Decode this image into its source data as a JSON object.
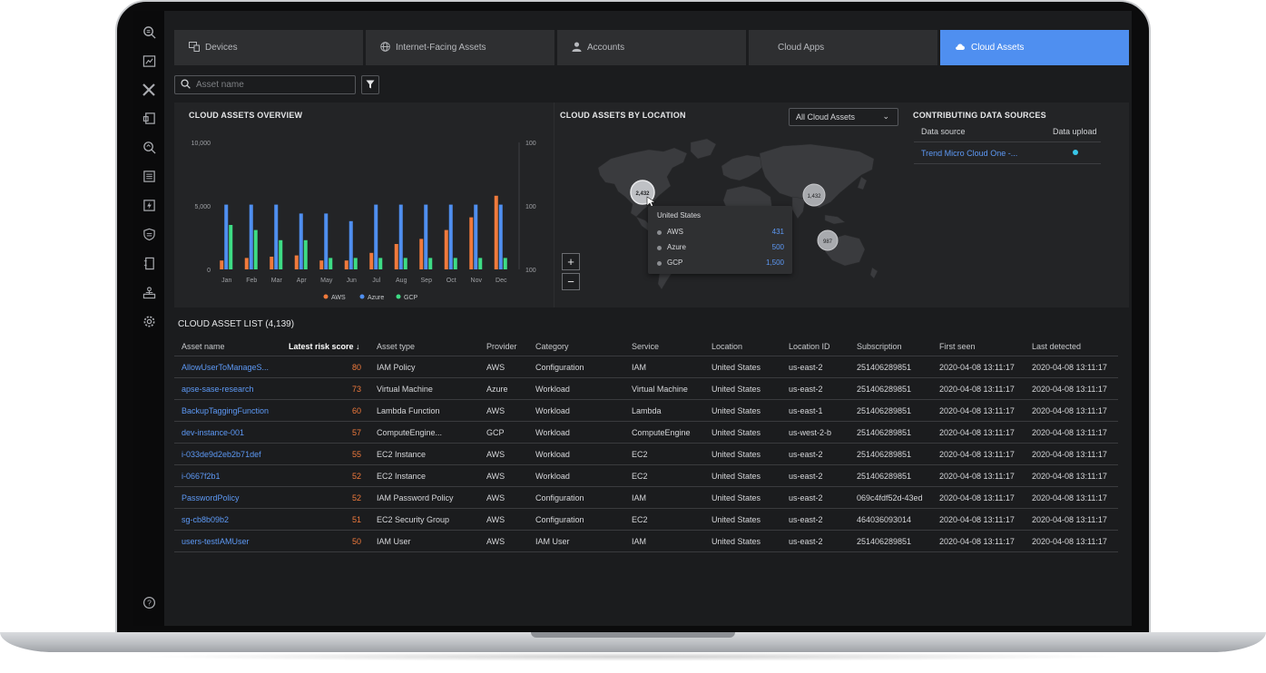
{
  "tabs": [
    {
      "label": "Devices",
      "icon": "devices-icon"
    },
    {
      "label": "Internet-Facing Assets",
      "icon": "globe-icon"
    },
    {
      "label": "Accounts",
      "icon": "user-icon"
    },
    {
      "label": "Cloud Apps",
      "icon": ""
    },
    {
      "label": "Cloud Assets",
      "icon": "cloud-icon",
      "active": true
    }
  ],
  "search": {
    "placeholder": "Asset name"
  },
  "overview": {
    "title": "CLOUD ASSETS OVERVIEW"
  },
  "chart_data": {
    "type": "bar",
    "categories": [
      "Jan",
      "Feb",
      "Mar",
      "Apr",
      "May",
      "Jun",
      "Jul",
      "Aug",
      "Sep",
      "Oct",
      "Nov",
      "Dec"
    ],
    "series": [
      {
        "name": "AWS",
        "color": "#f07a3c",
        "values": [
          700,
          900,
          1000,
          1100,
          700,
          700,
          1300,
          2000,
          2400,
          3100,
          4100,
          5800
        ]
      },
      {
        "name": "Azure",
        "color": "#4f8ff0",
        "values": [
          5100,
          5100,
          5100,
          4400,
          4400,
          3800,
          5100,
          5100,
          5100,
          5100,
          5100,
          5100
        ]
      },
      {
        "name": "GCP",
        "color": "#3ddc84",
        "values": [
          3500,
          3100,
          2300,
          2300,
          900,
          900,
          900,
          900,
          900,
          900,
          900,
          900
        ]
      }
    ],
    "left_ticks": [
      "10,000",
      "5,000",
      "0"
    ],
    "right_ticks": [
      "100",
      "100",
      "100"
    ],
    "ylim": [
      0,
      10000
    ],
    "legend": "bottom"
  },
  "location": {
    "title": "CLOUD ASSETS BY LOCATION",
    "select_value": "All Cloud Assets",
    "clusters": [
      "2,432",
      "1,432",
      "987"
    ],
    "tooltip": {
      "title": "United States",
      "rows": [
        {
          "name": "AWS",
          "value": "431"
        },
        {
          "name": "Azure",
          "value": "500"
        },
        {
          "name": "GCP",
          "value": "1,500"
        }
      ]
    },
    "zoom_in": "+",
    "zoom_out": "−"
  },
  "sources": {
    "title": "CONTRIBUTING DATA SOURCES",
    "col_source": "Data source",
    "col_upload": "Data upload",
    "row_source": "Trend Micro Cloud One -...",
    "status_color": "#38c6e8"
  },
  "list": {
    "title": "CLOUD ASSET LIST (4,139)",
    "columns": [
      "Asset name",
      "Latest risk score ↓",
      "Asset type",
      "Provider",
      "Category",
      "Service",
      "Location",
      "Location ID",
      "Subscription",
      "First seen",
      "Last detected"
    ],
    "rows": [
      [
        "AllowUserToManageS...",
        "80",
        "IAM Policy",
        "AWS",
        "Configuration",
        "IAM",
        "United States",
        "us-east-2",
        "251406289851",
        "2020-04-08 13:11:17",
        "2020-04-08 13:11:17"
      ],
      [
        "apse-sase-research",
        "73",
        "Virtual Machine",
        "Azure",
        "Workload",
        "Virtual Machine",
        "United States",
        "us-east-2",
        "251406289851",
        "2020-04-08 13:11:17",
        "2020-04-08 13:11:17"
      ],
      [
        "BackupTaggingFunction",
        "60",
        "Lambda Function",
        "AWS",
        "Workload",
        "Lambda",
        "United States",
        "us-east-1",
        "251406289851",
        "2020-04-08 13:11:17",
        "2020-04-08 13:11:17"
      ],
      [
        "dev-instance-001",
        "57",
        "ComputeEngine...",
        "GCP",
        "Workload",
        "ComputeEngine",
        "United States",
        "us-west-2-b",
        "251406289851",
        "2020-04-08 13:11:17",
        "2020-04-08 13:11:17"
      ],
      [
        "i-033de9d2eb2b71def",
        "55",
        "EC2 Instance",
        "AWS",
        "Workload",
        "EC2",
        "United States",
        "us-east-2",
        "251406289851",
        "2020-04-08 13:11:17",
        "2020-04-08 13:11:17"
      ],
      [
        "i-0667f2b1",
        "52",
        "EC2 Instance",
        "AWS",
        "Workload",
        "EC2",
        "United States",
        "us-east-2",
        "251406289851",
        "2020-04-08 13:11:17",
        "2020-04-08 13:11:17"
      ],
      [
        "PasswordPolicy",
        "52",
        "IAM Password Policy",
        "AWS",
        "Configuration",
        "IAM",
        "United States",
        "us-east-2",
        "069c4fdf52d-43ed",
        "2020-04-08 13:11:17",
        "2020-04-08 13:11:17"
      ],
      [
        "sg-cb8b09b2",
        "51",
        "EC2 Security Group",
        "AWS",
        "Configuration",
        "EC2",
        "United States",
        "us-east-2",
        "464036093014",
        "2020-04-08 13:11:17",
        "2020-04-08 13:11:17"
      ],
      [
        "users-testIAMUser",
        "50",
        "IAM User",
        "AWS",
        "IAM User",
        "IAM",
        "United States",
        "us-east-2",
        "251406289851",
        "2020-04-08 13:11:17",
        "2020-04-08 13:11:17"
      ]
    ]
  },
  "sidebar": {
    "icons": [
      "search-report-icon",
      "dashboard-icon",
      "xdr-icon",
      "endpoint-icon",
      "investigate-icon",
      "list-icon",
      "response-icon",
      "policy-icon",
      "report-icon",
      "network-icon",
      "settings-icon"
    ],
    "help_icon": "help-icon"
  }
}
